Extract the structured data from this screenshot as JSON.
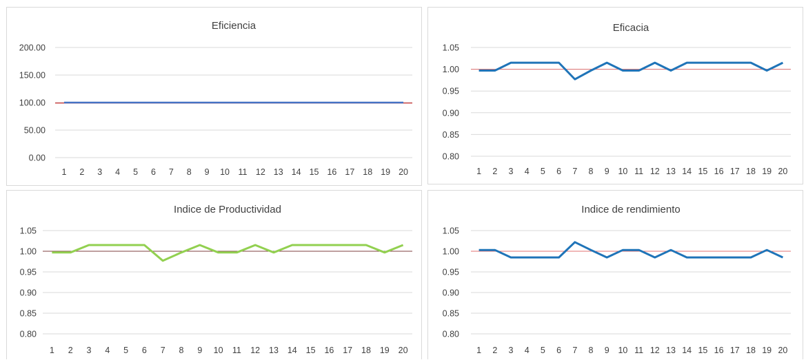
{
  "chart_data": [
    {
      "type": "line",
      "title": "Eficiencia",
      "xlabel": "",
      "ylabel": "",
      "categories": [
        "1",
        "2",
        "3",
        "4",
        "5",
        "6",
        "7",
        "8",
        "9",
        "10",
        "11",
        "12",
        "13",
        "14",
        "15",
        "16",
        "17",
        "18",
        "19",
        "20"
      ],
      "ylim": [
        0,
        200
      ],
      "yticks": [
        "0.00",
        "50.00",
        "100.00",
        "150.00",
        "200.00"
      ],
      "grid": true,
      "series": [
        {
          "values": [
            100,
            100,
            100,
            100,
            100,
            100,
            100,
            100,
            100,
            100,
            100,
            100,
            100,
            100,
            100,
            100,
            100,
            100,
            100,
            100
          ],
          "color": "#4472c4"
        },
        {
          "values": [
            99,
            99,
            99,
            99,
            99,
            99,
            99,
            99,
            99,
            99,
            99,
            99,
            99,
            99,
            99,
            99,
            99,
            99,
            99,
            99
          ],
          "color": "#c00000"
        }
      ]
    },
    {
      "type": "line",
      "title": "Eficacia",
      "xlabel": "",
      "ylabel": "",
      "categories": [
        "1",
        "2",
        "3",
        "4",
        "5",
        "6",
        "7",
        "8",
        "9",
        "10",
        "11",
        "12",
        "13",
        "14",
        "15",
        "16",
        "17",
        "18",
        "19",
        "20"
      ],
      "ylim": [
        0.8,
        1.05
      ],
      "yticks": [
        "0.80",
        "0.85",
        "0.90",
        "0.95",
        "1.00",
        "1.05"
      ],
      "grid": true,
      "series": [
        {
          "values": [
            0.997,
            0.997,
            1.015,
            1.015,
            1.015,
            1.015,
            0.977,
            0.997,
            1.015,
            0.997,
            0.997,
            1.015,
            0.997,
            1.015,
            1.015,
            1.015,
            1.015,
            1.015,
            0.997,
            1.015
          ],
          "color": "#1f74b8"
        },
        {
          "values": [
            1.0,
            1.0,
            1.0,
            1.0,
            1.0,
            1.0,
            1.0,
            1.0,
            1.0,
            1.0,
            1.0,
            1.0,
            1.0,
            1.0,
            1.0,
            1.0,
            1.0,
            1.0,
            1.0,
            1.0
          ],
          "color": "#e07070"
        }
      ]
    },
    {
      "type": "line",
      "title": "Indice de Productividad",
      "xlabel": "",
      "ylabel": "",
      "categories": [
        "1",
        "2",
        "3",
        "4",
        "5",
        "6",
        "7",
        "8",
        "9",
        "10",
        "11",
        "12",
        "13",
        "14",
        "15",
        "16",
        "17",
        "18",
        "19",
        "20"
      ],
      "ylim": [
        0.8,
        1.05
      ],
      "yticks": [
        "0.80",
        "0.85",
        "0.90",
        "0.95",
        "1.00",
        "1.05"
      ],
      "grid": true,
      "series": [
        {
          "values": [
            0.997,
            0.997,
            1.015,
            1.015,
            1.015,
            1.015,
            0.977,
            0.997,
            1.015,
            0.997,
            0.997,
            1.015,
            0.997,
            1.015,
            1.015,
            1.015,
            1.015,
            1.015,
            0.997,
            1.015
          ],
          "color": "#92d050"
        },
        {
          "values": [
            1.0,
            1.0,
            1.0,
            1.0,
            1.0,
            1.0,
            1.0,
            1.0,
            1.0,
            1.0,
            1.0,
            1.0,
            1.0,
            1.0,
            1.0,
            1.0,
            1.0,
            1.0,
            1.0,
            1.0
          ],
          "color": "#7f3f3f"
        }
      ]
    },
    {
      "type": "line",
      "title": "Indice de rendimiento",
      "xlabel": "",
      "ylabel": "",
      "categories": [
        "1",
        "2",
        "3",
        "4",
        "5",
        "6",
        "7",
        "8",
        "9",
        "10",
        "11",
        "12",
        "13",
        "14",
        "15",
        "16",
        "17",
        "18",
        "19",
        "20"
      ],
      "ylim": [
        0.8,
        1.05
      ],
      "yticks": [
        "0.80",
        "0.85",
        "0.90",
        "0.95",
        "1.00",
        "1.05"
      ],
      "grid": true,
      "series": [
        {
          "values": [
            1.003,
            1.003,
            0.985,
            0.985,
            0.985,
            0.985,
            1.022,
            1.003,
            0.985,
            1.003,
            1.003,
            0.985,
            1.003,
            0.985,
            0.985,
            0.985,
            0.985,
            0.985,
            1.003,
            0.985
          ],
          "color": "#1f74b8"
        },
        {
          "values": [
            1.0,
            1.0,
            1.0,
            1.0,
            1.0,
            1.0,
            1.0,
            1.0,
            1.0,
            1.0,
            1.0,
            1.0,
            1.0,
            1.0,
            1.0,
            1.0,
            1.0,
            1.0,
            1.0,
            1.0
          ],
          "color": "#e07070"
        }
      ]
    }
  ]
}
